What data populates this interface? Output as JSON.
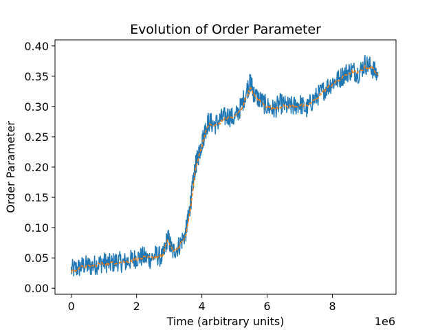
{
  "chart_data": {
    "type": "line",
    "title": "Evolution of Order Parameter",
    "xlabel": "Time (arbitrary units)",
    "ylabel": "Order Parameter",
    "x_offset_label": "1e6",
    "xlim": [
      -500000,
      9950000
    ],
    "ylim": [
      -0.01,
      0.41
    ],
    "xticks": [
      0,
      2000000,
      4000000,
      6000000,
      8000000
    ],
    "xtick_labels": [
      "0",
      "2",
      "4",
      "6",
      "8"
    ],
    "yticks": [
      0.0,
      0.05,
      0.1,
      0.15,
      0.2,
      0.25,
      0.3,
      0.35,
      0.4
    ],
    "ytick_labels": [
      "0.00",
      "0.05",
      "0.10",
      "0.15",
      "0.20",
      "0.25",
      "0.30",
      "0.35",
      "0.40"
    ],
    "grid": false,
    "series": [
      {
        "color": "#1f77b4",
        "style": "solid",
        "x": [
          0,
          200000,
          400000,
          600000,
          800000,
          1000000,
          1200000,
          1400000,
          1600000,
          1800000,
          2000000,
          2200000,
          2400000,
          2600000,
          2800000,
          2950000,
          3100000,
          3300000,
          3500000,
          3600000,
          3700000,
          3800000,
          3900000,
          4000000,
          4100000,
          4200000,
          4400000,
          4600000,
          4800000,
          5000000,
          5200000,
          5400000,
          5500000,
          5600000,
          5800000,
          6000000,
          6200000,
          6400000,
          6600000,
          6800000,
          7000000,
          7200000,
          7400000,
          7600000,
          7800000,
          8000000,
          8200000,
          8400000,
          8600000,
          8800000,
          9000000,
          9200000,
          9400000
        ],
        "values": [
          0.03,
          0.033,
          0.038,
          0.036,
          0.04,
          0.043,
          0.04,
          0.045,
          0.042,
          0.046,
          0.05,
          0.052,
          0.048,
          0.055,
          0.05,
          0.085,
          0.06,
          0.07,
          0.09,
          0.12,
          0.16,
          0.2,
          0.22,
          0.24,
          0.26,
          0.275,
          0.27,
          0.28,
          0.285,
          0.28,
          0.3,
          0.33,
          0.34,
          0.32,
          0.31,
          0.3,
          0.295,
          0.305,
          0.3,
          0.3,
          0.305,
          0.295,
          0.31,
          0.32,
          0.33,
          0.34,
          0.345,
          0.355,
          0.36,
          0.355,
          0.37,
          0.365,
          0.35
        ]
      },
      {
        "color": "#ff7f0e",
        "style": "dashed",
        "x": [
          0,
          200000,
          400000,
          600000,
          800000,
          1000000,
          1200000,
          1400000,
          1600000,
          1800000,
          2000000,
          2200000,
          2400000,
          2600000,
          2800000,
          2950000,
          3100000,
          3300000,
          3500000,
          3600000,
          3700000,
          3800000,
          3900000,
          4000000,
          4100000,
          4200000,
          4400000,
          4600000,
          4800000,
          5000000,
          5200000,
          5400000,
          5500000,
          5600000,
          5800000,
          6000000,
          6200000,
          6400000,
          6600000,
          6800000,
          7000000,
          7200000,
          7400000,
          7600000,
          7800000,
          8000000,
          8200000,
          8400000,
          8600000,
          8800000,
          9000000,
          9200000,
          9400000
        ],
        "values": [
          0.028,
          0.032,
          0.036,
          0.036,
          0.039,
          0.041,
          0.041,
          0.043,
          0.043,
          0.045,
          0.048,
          0.05,
          0.05,
          0.052,
          0.053,
          0.08,
          0.062,
          0.068,
          0.085,
          0.115,
          0.15,
          0.195,
          0.215,
          0.235,
          0.255,
          0.27,
          0.268,
          0.275,
          0.282,
          0.282,
          0.295,
          0.32,
          0.33,
          0.318,
          0.308,
          0.3,
          0.297,
          0.3,
          0.3,
          0.3,
          0.302,
          0.3,
          0.308,
          0.318,
          0.328,
          0.337,
          0.343,
          0.352,
          0.357,
          0.356,
          0.365,
          0.365,
          0.352
        ]
      }
    ]
  }
}
